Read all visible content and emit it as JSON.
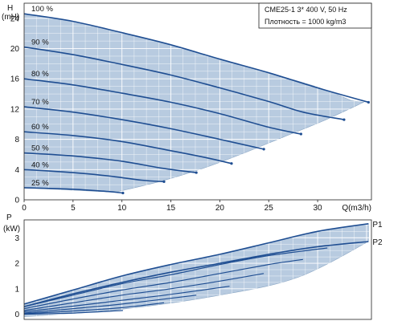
{
  "colors": {
    "envelope_fill": "#b8cbe0",
    "envelope_edge": "#8aa6c4",
    "curve": "#1f4e92",
    "axis": "#222222",
    "grid": "#ffffff",
    "plot_bg": "#ffffff"
  },
  "chart_data": [
    {
      "type": "line",
      "title": "",
      "xlabel": "Q(m3/h)",
      "ylabel": "H (mH)",
      "ylabel_top": "H",
      "ylabel_unit": "(mH)",
      "xlim": [
        0,
        35.5
      ],
      "ylim": [
        0,
        26
      ],
      "xticks": [
        0,
        5,
        10,
        15,
        20,
        25,
        30
      ],
      "yticks": [
        0,
        4,
        8,
        12,
        16,
        20,
        24
      ],
      "grid": true,
      "legend": {
        "position": "top-right",
        "lines": [
          "CME25-1    3* 400 V, 50 Hz",
          "Плотность = 1000 kg/m3"
        ]
      },
      "envelope": {
        "upper": [
          [
            0,
            24.6
          ],
          [
            5,
            23.6
          ],
          [
            10,
            22.1
          ],
          [
            15,
            20.5
          ],
          [
            20,
            18.6
          ],
          [
            25,
            16.8
          ],
          [
            30,
            14.9
          ],
          [
            33.5,
            13.1
          ]
        ],
        "lower": [
          [
            9.3,
            1.0
          ],
          [
            14.1,
            2.5
          ],
          [
            18.6,
            4.3
          ],
          [
            22.5,
            6.2
          ],
          [
            26.5,
            8.3
          ],
          [
            30.5,
            10.4
          ],
          [
            34.7,
            12.9
          ]
        ]
      },
      "series": [
        {
          "name": "100 %",
          "points": [
            [
              0,
              24.6
            ],
            [
              5,
              23.6
            ],
            [
              10,
              22.1
            ],
            [
              15,
              20.5
            ],
            [
              20,
              18.6
            ],
            [
              25,
              16.8
            ],
            [
              30,
              14.8
            ],
            [
              35.2,
              12.9
            ]
          ]
        },
        {
          "name": "90 %",
          "points": [
            [
              0,
              20.2
            ],
            [
              5,
              19.2
            ],
            [
              10,
              17.9
            ],
            [
              15,
              16.5
            ],
            [
              20,
              14.8
            ],
            [
              25,
              13.0
            ],
            [
              28.5,
              11.6
            ],
            [
              32.7,
              10.6
            ]
          ]
        },
        {
          "name": "80 %",
          "points": [
            [
              0,
              16.0
            ],
            [
              5,
              15.2
            ],
            [
              10,
              14.1
            ],
            [
              15,
              12.9
            ],
            [
              20,
              11.4
            ],
            [
              25,
              9.6
            ],
            [
              28.3,
              8.7
            ]
          ]
        },
        {
          "name": "70 %",
          "points": [
            [
              0,
              12.3
            ],
            [
              5,
              11.6
            ],
            [
              10,
              10.6
            ],
            [
              15,
              9.4
            ],
            [
              20,
              8.0
            ],
            [
              24.5,
              6.7
            ]
          ]
        },
        {
          "name": "60 %",
          "points": [
            [
              0,
              9.0
            ],
            [
              5,
              8.5
            ],
            [
              10,
              7.7
            ],
            [
              15,
              6.5
            ],
            [
              18.5,
              5.6
            ],
            [
              21.2,
              4.8
            ]
          ]
        },
        {
          "name": "50 %",
          "points": [
            [
              0,
              6.2
            ],
            [
              5,
              5.8
            ],
            [
              10,
              5.1
            ],
            [
              14,
              4.2
            ],
            [
              17.6,
              3.6
            ]
          ]
        },
        {
          "name": "40 %",
          "points": [
            [
              0,
              4.0
            ],
            [
              5,
              3.6
            ],
            [
              9,
              3.1
            ],
            [
              12,
              2.6
            ],
            [
              14.3,
              2.4
            ]
          ]
        },
        {
          "name": "25 %",
          "points": [
            [
              0,
              1.6
            ],
            [
              5,
              1.4
            ],
            [
              8.5,
              1.1
            ],
            [
              10.1,
              0.9
            ]
          ]
        }
      ]
    },
    {
      "type": "line",
      "title": "",
      "xlabel": "",
      "ylabel": "P (kW)",
      "ylabel_top": "P",
      "ylabel_unit": "(kW)",
      "xlim": [
        0,
        35.5
      ],
      "ylim": [
        -0.2,
        3.7
      ],
      "yticks": [
        0,
        1,
        2,
        3
      ],
      "grid": true,
      "envelope": {
        "upper": [
          [
            0,
            0.4
          ],
          [
            5,
            0.95
          ],
          [
            10,
            1.5
          ],
          [
            15,
            1.95
          ],
          [
            20,
            2.35
          ],
          [
            25,
            2.8
          ],
          [
            30,
            3.25
          ],
          [
            35.2,
            3.55
          ]
        ],
        "lower": [
          [
            0,
            -0.1
          ],
          [
            10,
            0.2
          ],
          [
            20,
            0.75
          ],
          [
            28,
            1.45
          ],
          [
            35.2,
            2.85
          ]
        ]
      },
      "series": [
        {
          "name": "P1",
          "points": [
            [
              0,
              0.4
            ],
            [
              5,
              0.95
            ],
            [
              10,
              1.5
            ],
            [
              15,
              1.95
            ],
            [
              20,
              2.35
            ],
            [
              25,
              2.8
            ],
            [
              30,
              3.25
            ],
            [
              35.2,
              3.55
            ]
          ]
        },
        {
          "name": "P2",
          "points": [
            [
              0,
              0.3
            ],
            [
              5,
              0.8
            ],
            [
              10,
              1.25
            ],
            [
              15,
              1.65
            ],
            [
              20,
              2.0
            ],
            [
              25,
              2.35
            ],
            [
              30,
              2.65
            ],
            [
              35.2,
              2.85
            ]
          ]
        }
      ],
      "speed_curves": [
        [
          [
            0,
            0.3
          ],
          [
            5,
            0.75
          ],
          [
            10,
            1.2
          ],
          [
            15,
            1.55
          ],
          [
            20,
            1.95
          ],
          [
            25,
            2.3
          ],
          [
            31,
            2.6
          ]
        ],
        [
          [
            0,
            0.22
          ],
          [
            5,
            0.6
          ],
          [
            10,
            0.95
          ],
          [
            15,
            1.25
          ],
          [
            20,
            1.6
          ],
          [
            25,
            1.95
          ],
          [
            28.5,
            2.15
          ]
        ],
        [
          [
            0,
            0.15
          ],
          [
            5,
            0.45
          ],
          [
            10,
            0.75
          ],
          [
            15,
            1.0
          ],
          [
            20,
            1.3
          ],
          [
            24.5,
            1.6
          ]
        ],
        [
          [
            0,
            0.1
          ],
          [
            5,
            0.32
          ],
          [
            10,
            0.55
          ],
          [
            15,
            0.78
          ],
          [
            21,
            1.1
          ]
        ],
        [
          [
            0,
            0.05
          ],
          [
            5,
            0.22
          ],
          [
            10,
            0.4
          ],
          [
            17.6,
            0.75
          ]
        ],
        [
          [
            0,
            0.02
          ],
          [
            5,
            0.13
          ],
          [
            10,
            0.26
          ],
          [
            14.3,
            0.45
          ]
        ],
        [
          [
            0,
            0.0
          ],
          [
            5,
            0.05
          ],
          [
            10.1,
            0.15
          ]
        ]
      ],
      "series_labels": [
        "P1",
        "P2"
      ]
    }
  ]
}
